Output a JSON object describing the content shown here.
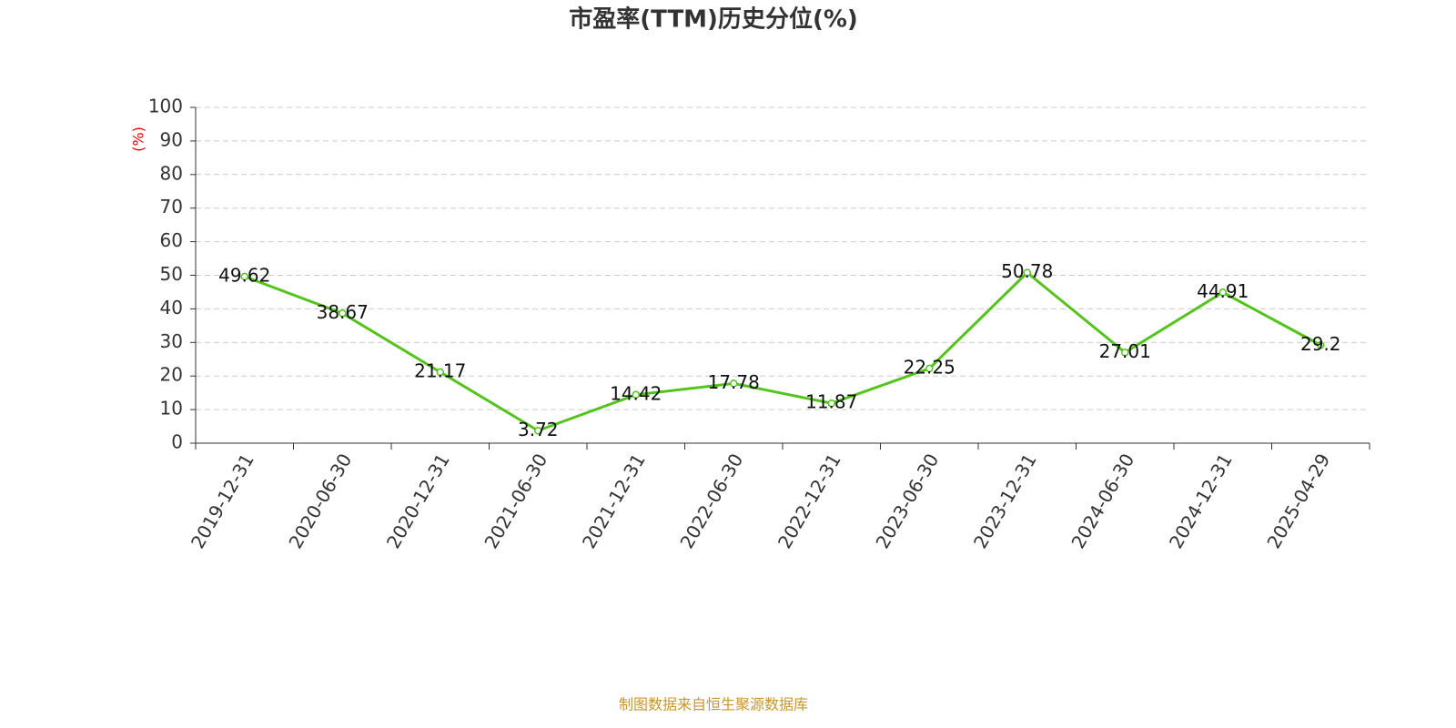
{
  "chart_data": {
    "type": "line",
    "title": "市盈率(TTM)历史分位(%)",
    "y_label": "(%)",
    "categories": [
      "2019-12-31",
      "2020-06-30",
      "2020-12-31",
      "2021-06-30",
      "2021-12-31",
      "2022-06-30",
      "2022-12-31",
      "2023-06-30",
      "2023-12-31",
      "2024-06-30",
      "2024-12-31",
      "2025-04-29"
    ],
    "values": [
      49.62,
      38.67,
      21.17,
      3.72,
      14.42,
      17.78,
      11.87,
      22.25,
      50.78,
      27.01,
      44.91,
      29.2
    ],
    "color": "#52c41a",
    "ylim": [
      0,
      100
    ],
    "yticks": [
      0,
      10,
      20,
      30,
      40,
      50,
      60,
      70,
      80,
      90,
      100
    ],
    "grid": true,
    "source": "制图数据来自恒生聚源数据库"
  }
}
